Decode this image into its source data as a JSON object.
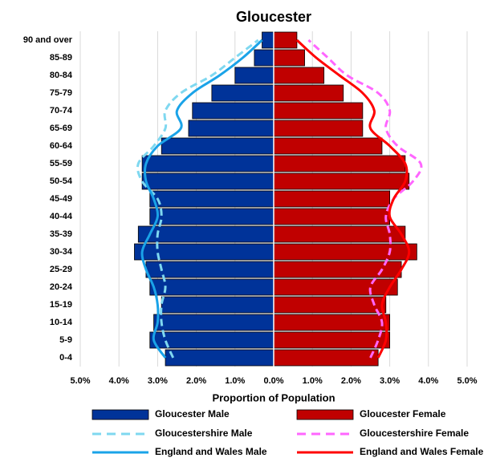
{
  "chart_data": {
    "type": "pyramid",
    "title": "Gloucester",
    "xlabel": "Proportion of Population",
    "categories": [
      "0-4",
      "5-9",
      "10-14",
      "15-19",
      "20-24",
      "25-29",
      "30-34",
      "35-39",
      "40-44",
      "45-49",
      "50-54",
      "55-59",
      "60-64",
      "65-69",
      "70-74",
      "75-79",
      "80-84",
      "85-89",
      "90 and over"
    ],
    "xlim": [
      -5,
      5
    ],
    "xticks": [
      {
        "value": -5,
        "label": "5.0%"
      },
      {
        "value": -4,
        "label": "4.0%"
      },
      {
        "value": -3,
        "label": "3.0%"
      },
      {
        "value": -2,
        "label": "2.0%"
      },
      {
        "value": -1,
        "label": "1.0%"
      },
      {
        "value": 0,
        "label": "0.0%"
      },
      {
        "value": 1,
        "label": "1.0%"
      },
      {
        "value": 2,
        "label": "2.0%"
      },
      {
        "value": 3,
        "label": "3.0%"
      },
      {
        "value": 4,
        "label": "4.0%"
      },
      {
        "value": 5,
        "label": "5.0%"
      }
    ],
    "grid": true,
    "series": [
      {
        "name": "Gloucester Male",
        "color": "#003399",
        "style": "bar",
        "values": [
          -2.8,
          -3.2,
          -3.1,
          -2.9,
          -3.2,
          -3.3,
          -3.6,
          -3.5,
          -3.2,
          -3.2,
          -3.4,
          -3.4,
          -2.9,
          -2.2,
          -2.1,
          -1.6,
          -1.0,
          -0.5,
          -0.3
        ]
      },
      {
        "name": "Gloucester Female",
        "color": "#c00000",
        "style": "bar",
        "values": [
          2.7,
          3.0,
          3.0,
          2.9,
          3.2,
          3.3,
          3.7,
          3.4,
          3.0,
          3.0,
          3.5,
          3.4,
          2.8,
          2.3,
          2.3,
          1.8,
          1.3,
          0.8,
          0.6
        ]
      },
      {
        "name": "Gloucestershire Male",
        "color": "#7fd8f0",
        "style": "dashed",
        "values": [
          -2.6,
          -2.8,
          -2.9,
          -2.9,
          -2.8,
          -2.9,
          -3.0,
          -3.0,
          -2.9,
          -3.0,
          -3.4,
          -3.5,
          -3.1,
          -2.8,
          -2.8,
          -2.4,
          -1.6,
          -1.0,
          -0.4
        ]
      },
      {
        "name": "Gloucestershire Female",
        "color": "#ff66ff",
        "style": "dashed",
        "values": [
          2.5,
          2.7,
          2.8,
          2.6,
          2.5,
          2.8,
          3.0,
          3.0,
          2.9,
          3.1,
          3.6,
          3.8,
          3.2,
          2.9,
          3.0,
          2.7,
          1.9,
          1.4,
          0.9
        ]
      },
      {
        "name": "England and Wales Male",
        "color": "#1aa3e8",
        "style": "solid",
        "values": [
          -2.8,
          -3.1,
          -3.0,
          -3.0,
          -3.1,
          -3.3,
          -3.4,
          -3.2,
          -3.0,
          -3.1,
          -3.3,
          -3.3,
          -3.0,
          -2.4,
          -2.5,
          -2.1,
          -1.4,
          -0.8,
          -0.3
        ]
      },
      {
        "name": "England and Wales Female",
        "color": "#ff0000",
        "style": "solid",
        "values": [
          2.7,
          2.9,
          2.9,
          2.8,
          3.0,
          3.3,
          3.5,
          3.3,
          3.0,
          3.1,
          3.4,
          3.4,
          3.0,
          2.5,
          2.6,
          2.3,
          1.7,
          1.1,
          0.6
        ]
      }
    ]
  }
}
